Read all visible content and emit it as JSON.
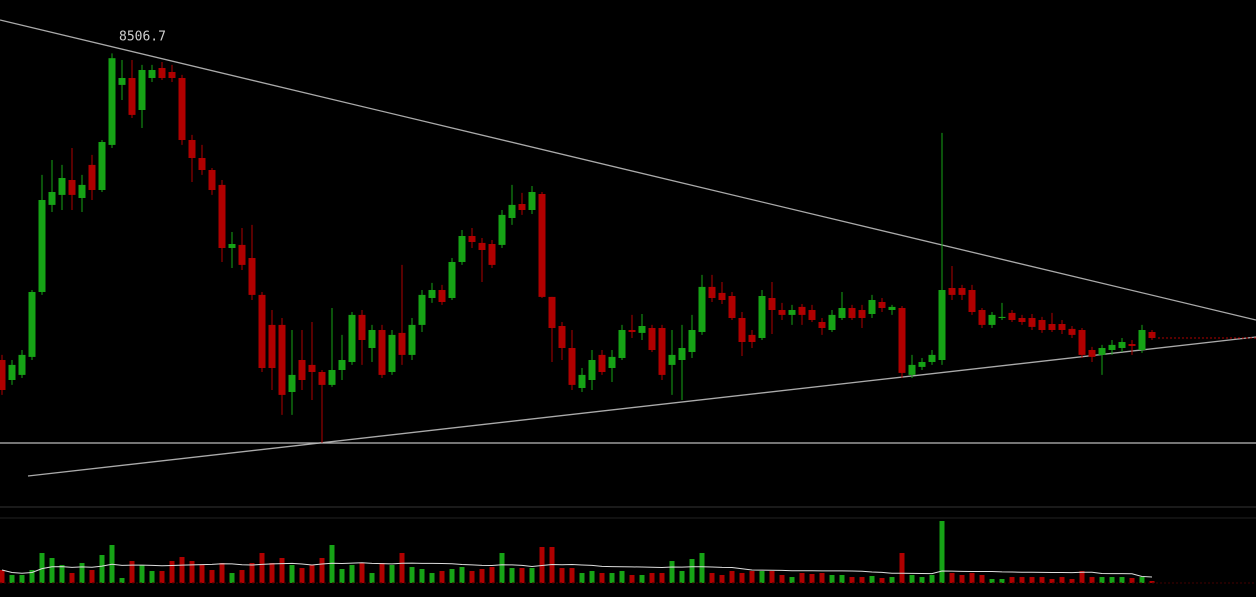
{
  "chart_data": {
    "type": "candlestick",
    "up_color": "#16a316",
    "down_color": "#b00000",
    "ylim": [
      6050,
      8800
    ],
    "open": [
      6820,
      6710,
      6738,
      6837,
      7194,
      7673,
      7728,
      7810,
      7711,
      7893,
      7755,
      8003,
      8333,
      8371,
      8195,
      8371,
      8426,
      8404,
      8371,
      8030,
      7931,
      7865,
      7783,
      7436,
      7453,
      7381,
      7178,
      7013,
      7013,
      6644,
      6820,
      6793,
      6754,
      6683,
      6765,
      6809,
      7068,
      6886,
      6985,
      6754,
      6969,
      6848,
      7013,
      7161,
      7205,
      7161,
      7359,
      7502,
      7464,
      7458,
      7453,
      7601,
      7678,
      7645,
      7733,
      7167,
      7007,
      6886,
      6666,
      6710,
      6848,
      6776,
      6831,
      6985,
      6969,
      6996,
      6996,
      6793,
      6820,
      6864,
      6974,
      7222,
      7189,
      7172,
      7051,
      6958,
      6941,
      7161,
      7095,
      7068,
      7112,
      7095,
      7029,
      6985,
      7051,
      7106,
      7095,
      7073,
      7139,
      7095,
      7106,
      6738,
      6782,
      6809,
      6820,
      7216,
      7216,
      7205,
      7095,
      7013,
      7051,
      7079,
      7051,
      7051,
      7040,
      7018,
      7018,
      6991,
      6985,
      6875,
      6848,
      6875,
      6886,
      6908,
      6875,
      6974
    ],
    "high": [
      6848,
      6820,
      6875,
      7205,
      7838,
      7920,
      7893,
      7986,
      7838,
      7948,
      8030,
      8506.7,
      8470,
      8470,
      8443,
      8443,
      8459,
      8443,
      8388,
      8058,
      8003,
      7876,
      7810,
      7524,
      7546,
      7563,
      7194,
      7095,
      7051,
      6985,
      6985,
      7029,
      6765,
      7106,
      6958,
      7084,
      7095,
      7013,
      7013,
      6985,
      7343,
      7051,
      7205,
      7244,
      7233,
      7381,
      7535,
      7546,
      7491,
      7480,
      7645,
      7783,
      7739,
      7777,
      7744,
      7167,
      7029,
      6985,
      6776,
      6875,
      6875,
      6875,
      7013,
      7068,
      7073,
      7013,
      7013,
      6985,
      7013,
      7068,
      7288,
      7288,
      7249,
      7194,
      7084,
      6985,
      7205,
      7249,
      7134,
      7123,
      7128,
      7123,
      7051,
      7095,
      7194,
      7123,
      7123,
      7178,
      7161,
      7123,
      7117,
      6848,
      6831,
      6875,
      8069,
      7337,
      7233,
      7233,
      7106,
      7084,
      7134,
      7095,
      7068,
      7073,
      7057,
      7079,
      7040,
      7007,
      6996,
      6892,
      6903,
      6930,
      6941,
      6930,
      7013,
      6985
    ],
    "low": [
      6628,
      6683,
      6721,
      6820,
      7178,
      7634,
      7645,
      7645,
      7634,
      7700,
      7744,
      7986,
      8250,
      8151,
      8096,
      8349,
      8360,
      8349,
      8003,
      7799,
      7838,
      7728,
      7359,
      7326,
      7315,
      7150,
      6754,
      6655,
      6518,
      6518,
      6655,
      6600,
      6364,
      6672,
      6710,
      6793,
      6793,
      6809,
      6721,
      6738,
      6793,
      6820,
      6974,
      7134,
      7123,
      7150,
      7343,
      7436,
      7249,
      7326,
      7436,
      7563,
      7618,
      7623,
      7161,
      6809,
      6820,
      6655,
      6644,
      6655,
      6738,
      6699,
      6820,
      6941,
      6930,
      6864,
      6710,
      6628,
      6600,
      6831,
      6958,
      7139,
      7128,
      7040,
      6842,
      6886,
      6930,
      6963,
      7040,
      7013,
      7013,
      7029,
      6958,
      6974,
      7040,
      7040,
      6996,
      7051,
      7084,
      7068,
      6721,
      6721,
      6765,
      6793,
      6793,
      7150,
      7150,
      7068,
      6996,
      6996,
      7040,
      7029,
      7013,
      6985,
      6969,
      6974,
      6963,
      6941,
      6831,
      6809,
      6738,
      6848,
      6864,
      6848,
      6859,
      6930
    ],
    "close": [
      6655,
      6793,
      6848,
      7194,
      7700,
      7744,
      7821,
      7728,
      7783,
      7755,
      8019,
      8480,
      8371,
      8168,
      8415,
      8415,
      8371,
      8371,
      8030,
      7931,
      7865,
      7755,
      7436,
      7458,
      7343,
      7178,
      6776,
      6776,
      6628,
      6738,
      6710,
      6754,
      6683,
      6765,
      6820,
      7068,
      6930,
      6985,
      6738,
      6958,
      6848,
      7013,
      7178,
      7205,
      7139,
      7359,
      7502,
      7469,
      7425,
      7343,
      7618,
      7673,
      7645,
      7744,
      7167,
      6996,
      6886,
      6683,
      6738,
      6820,
      6754,
      6837,
      6985,
      6974,
      7007,
      6875,
      6738,
      6848,
      6886,
      6985,
      7222,
      7161,
      7150,
      7051,
      6919,
      6919,
      7172,
      7095,
      7068,
      7095,
      7068,
      7040,
      6996,
      7068,
      7106,
      7051,
      7051,
      7150,
      7106,
      7112,
      6749,
      6793,
      6809,
      6848,
      7205,
      7178,
      7178,
      7084,
      7013,
      7068,
      7057,
      7040,
      7029,
      7002,
      6985,
      6985,
      6985,
      6958,
      6848,
      6837,
      6886,
      6903,
      6919,
      6897,
      6985,
      6941
    ],
    "volume": [
      13,
      8,
      8,
      13,
      30,
      25,
      18,
      10,
      20,
      13,
      28,
      38,
      5,
      22,
      18,
      12,
      12,
      22,
      26,
      22,
      18,
      13,
      20,
      10,
      13,
      20,
      30,
      20,
      25,
      18,
      15,
      18,
      25,
      38,
      14,
      18,
      20,
      10,
      20,
      18,
      30,
      16,
      14,
      10,
      12,
      14,
      16,
      12,
      14,
      16,
      30,
      15,
      15,
      15,
      36,
      36,
      15,
      15,
      10,
      12,
      10,
      10,
      12,
      8,
      8,
      10,
      10,
      22,
      12,
      24,
      30,
      10,
      8,
      12,
      10,
      12,
      12,
      12,
      8,
      6,
      10,
      9,
      10,
      8,
      8,
      6,
      6,
      7,
      5,
      6,
      30,
      8,
      6,
      8,
      62,
      10,
      8,
      10,
      8,
      4,
      4,
      6,
      6,
      6,
      6,
      4,
      6,
      4,
      12,
      6,
      6,
      6,
      6,
      5,
      6,
      2
    ],
    "volume_ylim": [
      0,
      62
    ]
  }
}
